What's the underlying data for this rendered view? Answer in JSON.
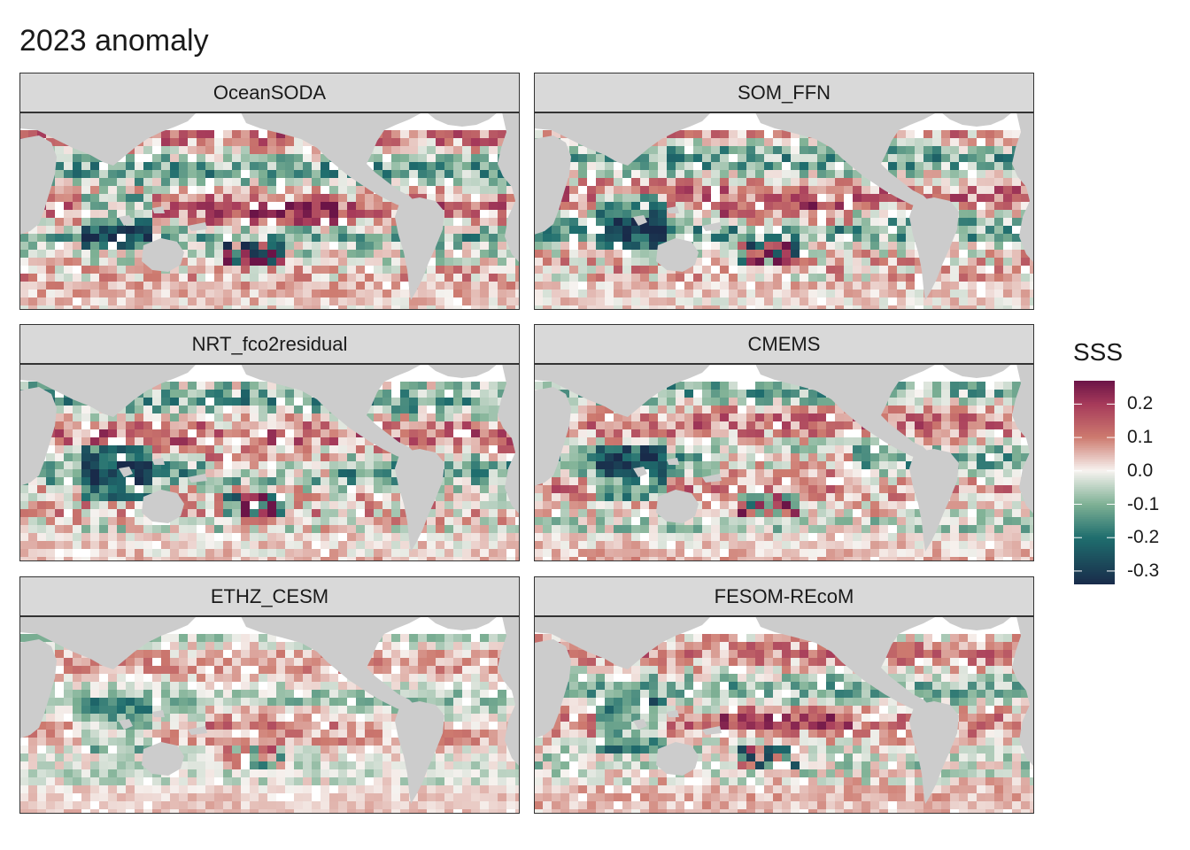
{
  "title": "2023 anomaly",
  "panels": [
    {
      "label": "OceanSODA",
      "seed": 11,
      "strength": 1.0
    },
    {
      "label": "SOM_FFN",
      "seed": 23,
      "strength": 1.0
    },
    {
      "label": "NRT_fco2residual",
      "seed": 37,
      "strength": 1.05
    },
    {
      "label": "CMEMS",
      "seed": 41,
      "strength": 0.95
    },
    {
      "label": "ETHZ_CESM",
      "seed": 53,
      "strength": 0.6
    },
    {
      "label": "FESOM-REcoM",
      "seed": 67,
      "strength": 0.85
    }
  ],
  "legend": {
    "title": "SSS",
    "ticks": [
      "0.2",
      "0.1",
      "0.0",
      "-0.1",
      "-0.2",
      "-0.3"
    ],
    "tick_values": [
      0.2,
      0.1,
      0.0,
      -0.1,
      -0.2,
      -0.3
    ],
    "range": [
      -0.34,
      0.27
    ]
  },
  "colors": {
    "land": "#cccccc",
    "ocean_bg": "#ffffff",
    "strip_bg": "#d9d9d9",
    "scale_high": "#6b1447",
    "scale_mid_high": "#cd7a6f",
    "scale_zero": "#f7f3f0",
    "scale_mid_low": "#7fb195",
    "scale_low": "#192b4a"
  }
}
